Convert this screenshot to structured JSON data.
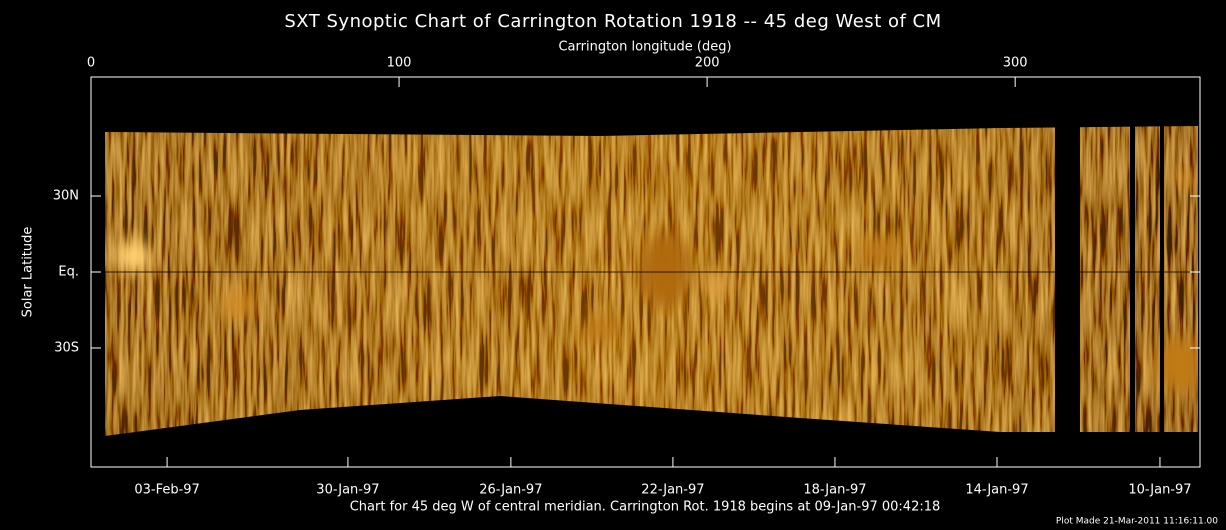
{
  "chart_data": {
    "type": "image",
    "title": "SXT Synoptic Chart of Carrington Rotation 1918 -- 45 deg West of CM",
    "xlabel": "Carrington longitude (deg)",
    "ylabel": "Solar Latitude",
    "xlim": [
      0,
      360
    ],
    "xticks": [
      0,
      100,
      200,
      300
    ],
    "ylim": [
      -77,
      77
    ],
    "yticks": [
      {
        "value": 30,
        "label": "30N"
      },
      {
        "value": 0,
        "label": "Eq."
      },
      {
        "value": -30,
        "label": "30S"
      }
    ],
    "x2ticks": [
      {
        "value": 24.7,
        "label": "03-Feb-97"
      },
      {
        "value": 83.4,
        "label": "30-Jan-97"
      },
      {
        "value": 136.3,
        "label": "26-Jan-97"
      },
      {
        "value": 188.9,
        "label": "22-Jan-97"
      },
      {
        "value": 241.5,
        "label": "18-Jan-97"
      },
      {
        "value": 294.1,
        "label": "14-Jan-97"
      },
      {
        "value": 347.0,
        "label": "10-Jan-97"
      }
    ],
    "caption": "Chart for 45 deg W of central meridian.  Carrington Rot. 1918 begins at 09-Jan-97 00:42:18",
    "plot_note": "Plot Made 21-Mar-2011 11:16:11.00"
  }
}
